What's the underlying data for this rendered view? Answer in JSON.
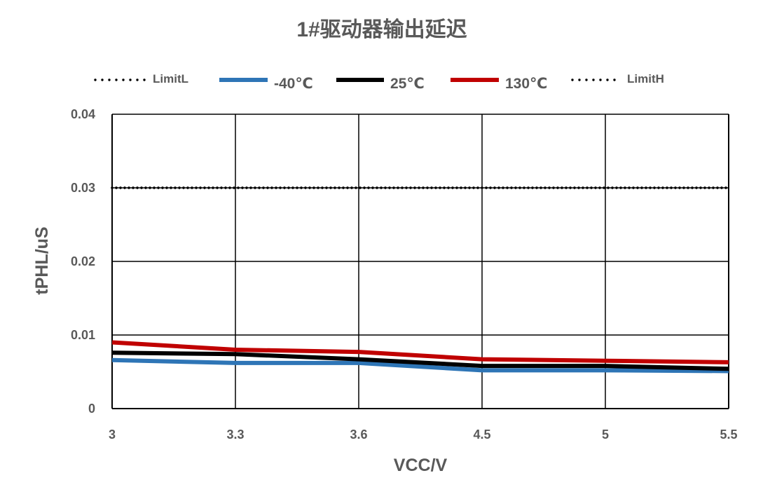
{
  "chart_data": {
    "type": "line",
    "title": "1#驱动器输出延迟",
    "xlabel": "VCC/V",
    "ylabel": "tPHL/uS",
    "categories": [
      "3",
      "3.3",
      "3.6",
      "4.5",
      "5",
      "5.5"
    ],
    "ylim": [
      0,
      0.04
    ],
    "yticks": [
      0,
      0.01,
      0.02,
      0.03,
      0.04
    ],
    "ytick_labels": [
      "0",
      "0.01",
      "0.02",
      "0.03",
      "0.04"
    ],
    "grid": true,
    "legend_position": "top",
    "series": [
      {
        "name": "LimitL",
        "values": [
          0.03,
          0.03,
          0.03,
          0.03,
          0.03,
          0.03
        ],
        "color": "#000000",
        "style": "dotted"
      },
      {
        "name": "-40℃",
        "values": [
          0.0066,
          0.0062,
          0.0062,
          0.0052,
          0.0052,
          0.0051
        ],
        "color": "#2E75B6",
        "style": "solid"
      },
      {
        "name": "25℃",
        "values": [
          0.0076,
          0.0074,
          0.0067,
          0.0058,
          0.0058,
          0.0054
        ],
        "color": "#000000",
        "style": "solid"
      },
      {
        "name": "130℃",
        "values": [
          0.009,
          0.008,
          0.0077,
          0.0067,
          0.0065,
          0.0063
        ],
        "color": "#C00000",
        "style": "solid"
      },
      {
        "name": "LimitH",
        "values": [
          0.03,
          0.03,
          0.03,
          0.03,
          0.03,
          0.03
        ],
        "color": "#000000",
        "style": "dotted"
      }
    ]
  }
}
